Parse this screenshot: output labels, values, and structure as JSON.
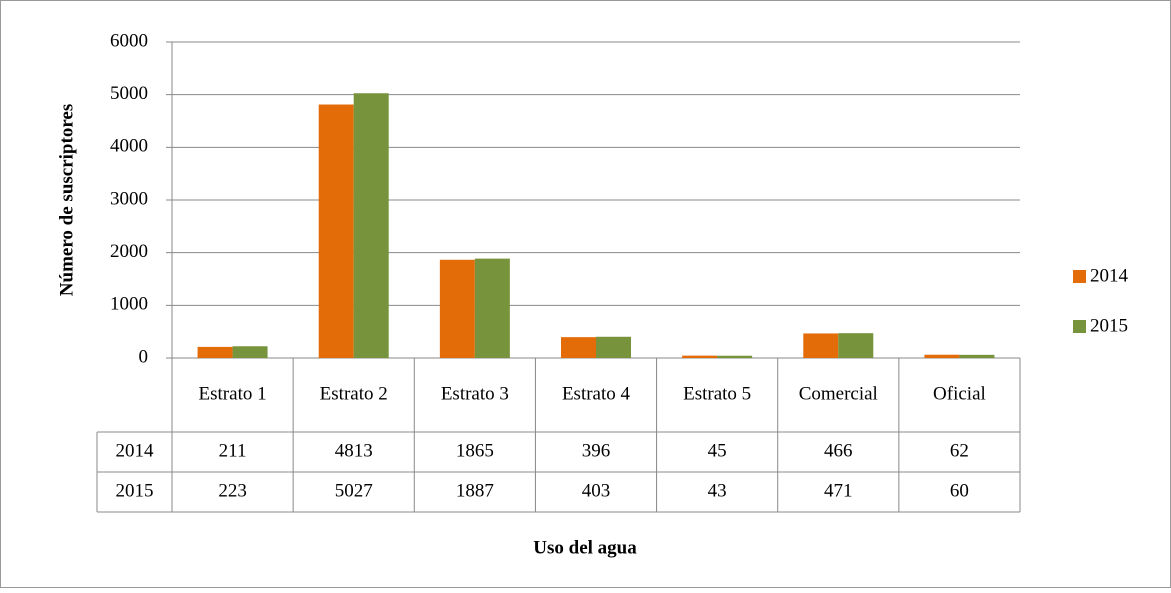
{
  "chart_data": {
    "type": "bar",
    "categories": [
      "Estrato 1",
      "Estrato 2",
      "Estrato 3",
      "Estrato 4",
      "Estrato 5",
      "Comercial",
      "Oficial"
    ],
    "series": [
      {
        "name": "2014",
        "color": "#e36c09",
        "values": [
          211,
          4813,
          1865,
          396,
          45,
          466,
          62
        ]
      },
      {
        "name": "2015",
        "color": "#77933c",
        "values": [
          223,
          5027,
          1887,
          403,
          43,
          471,
          60
        ]
      }
    ],
    "ylim": [
      0,
      6000
    ],
    "yticks": [
      0,
      1000,
      2000,
      3000,
      4000,
      5000,
      6000
    ],
    "y_label": "Número de suscriptores",
    "x_label": "Uso del agua",
    "grid": true,
    "legend": "right",
    "data_table": true
  }
}
